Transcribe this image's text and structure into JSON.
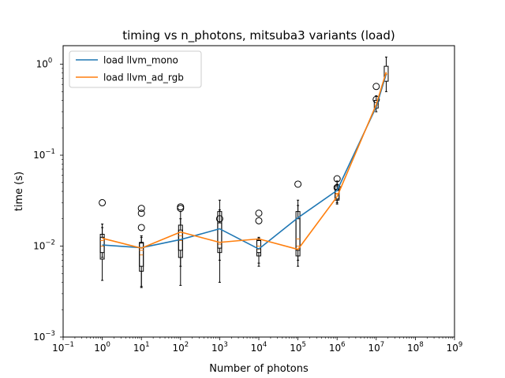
{
  "chart_data": {
    "type": "line",
    "title": "timing vs n_photons, mitsuba3 variants (load)",
    "xlabel": "Number of photons",
    "ylabel": "time (s)",
    "xscale": "log",
    "yscale": "log",
    "xlim": [
      0.1,
      1000000000
    ],
    "ylim": [
      0.001,
      1.6
    ],
    "x_ticks": [
      {
        "value": 0.1,
        "base": "10",
        "exp": "−1"
      },
      {
        "value": 1,
        "base": "10",
        "exp": "0"
      },
      {
        "value": 10,
        "base": "10",
        "exp": "1"
      },
      {
        "value": 100,
        "base": "10",
        "exp": "2"
      },
      {
        "value": 1000,
        "base": "10",
        "exp": "3"
      },
      {
        "value": 10000,
        "base": "10",
        "exp": "4"
      },
      {
        "value": 100000,
        "base": "10",
        "exp": "5"
      },
      {
        "value": 1000000,
        "base": "10",
        "exp": "6"
      },
      {
        "value": 10000000,
        "base": "10",
        "exp": "7"
      },
      {
        "value": 100000000,
        "base": "10",
        "exp": "8"
      },
      {
        "value": 1000000000,
        "base": "10",
        "exp": "9"
      }
    ],
    "y_ticks": [
      {
        "value": 0.001,
        "base": "10",
        "exp": "−3"
      },
      {
        "value": 0.01,
        "base": "10",
        "exp": "−2"
      },
      {
        "value": 0.1,
        "base": "10",
        "exp": "−1"
      },
      {
        "value": 1,
        "base": "10",
        "exp": "0"
      }
    ],
    "legend_position": "top-left",
    "grid": false,
    "x": [
      1,
      10,
      100,
      1000,
      10000,
      100000,
      1000000,
      10000000,
      18000000
    ],
    "series": [
      {
        "name": "load llvm_mono",
        "color": "#1f77b4",
        "values": [
          0.0103,
          0.0096,
          0.0118,
          0.0155,
          0.0093,
          0.0205,
          0.041,
          0.34,
          0.78
        ]
      },
      {
        "name": "load llvm_ad_rgb",
        "color": "#ff7f0e",
        "values": [
          0.0122,
          0.0095,
          0.0143,
          0.011,
          0.012,
          0.0092,
          0.035,
          0.36,
          0.82
        ]
      }
    ],
    "boxplots": [
      {
        "x": 1,
        "whislo": 0.0042,
        "q1": 0.0072,
        "med": 0.01,
        "q3": 0.0135,
        "whishi": 0.0175,
        "fliers": [
          0.03
        ]
      },
      {
        "x": 1,
        "whislo": 0.0075,
        "q1": 0.0085,
        "med": 0.0115,
        "q3": 0.0125,
        "whishi": 0.016,
        "fliers": []
      },
      {
        "x": 10,
        "whislo": 0.0035,
        "q1": 0.0053,
        "med": 0.008,
        "q3": 0.0108,
        "whishi": 0.013,
        "fliers": [
          0.016,
          0.023,
          0.026
        ]
      },
      {
        "x": 10,
        "whislo": 0.0036,
        "q1": 0.006,
        "med": 0.009,
        "q3": 0.011,
        "whishi": 0.0125,
        "fliers": []
      },
      {
        "x": 100,
        "whislo": 0.0037,
        "q1": 0.0075,
        "med": 0.0115,
        "q3": 0.017,
        "whishi": 0.024,
        "fliers": [
          0.026,
          0.027
        ]
      },
      {
        "x": 100,
        "whislo": 0.006,
        "q1": 0.009,
        "med": 0.013,
        "q3": 0.015,
        "whishi": 0.02,
        "fliers": []
      },
      {
        "x": 1000,
        "whislo": 0.004,
        "q1": 0.0085,
        "med": 0.0105,
        "q3": 0.024,
        "whishi": 0.032,
        "fliers": [
          0.02
        ]
      },
      {
        "x": 1000,
        "whislo": 0.007,
        "q1": 0.0095,
        "med": 0.011,
        "q3": 0.018,
        "whishi": 0.025,
        "fliers": []
      },
      {
        "x": 10000,
        "whislo": 0.006,
        "q1": 0.0078,
        "med": 0.0092,
        "q3": 0.0118,
        "whishi": 0.0125,
        "fliers": [
          0.019,
          0.023
        ]
      },
      {
        "x": 10000,
        "whislo": 0.0065,
        "q1": 0.0085,
        "med": 0.01,
        "q3": 0.0115,
        "whishi": 0.0122,
        "fliers": []
      },
      {
        "x": 100000,
        "whislo": 0.006,
        "q1": 0.0078,
        "med": 0.01,
        "q3": 0.024,
        "whishi": 0.032,
        "fliers": [
          0.048
        ]
      },
      {
        "x": 100000,
        "whislo": 0.007,
        "q1": 0.009,
        "med": 0.012,
        "q3": 0.02,
        "whishi": 0.028,
        "fliers": []
      },
      {
        "x": 1000000,
        "whislo": 0.029,
        "q1": 0.032,
        "med": 0.038,
        "q3": 0.046,
        "whishi": 0.052,
        "fliers": [
          0.044,
          0.055
        ]
      },
      {
        "x": 1000000,
        "whislo": 0.03,
        "q1": 0.033,
        "med": 0.037,
        "q3": 0.042,
        "whishi": 0.048,
        "fliers": []
      },
      {
        "x": 10000000,
        "whislo": 0.3,
        "q1": 0.33,
        "med": 0.35,
        "q3": 0.4,
        "whishi": 0.45,
        "fliers": [
          0.41,
          0.57
        ]
      },
      {
        "x": 18000000,
        "whislo": 0.5,
        "q1": 0.65,
        "med": 0.78,
        "q3": 0.95,
        "whishi": 1.2,
        "fliers": []
      }
    ]
  }
}
